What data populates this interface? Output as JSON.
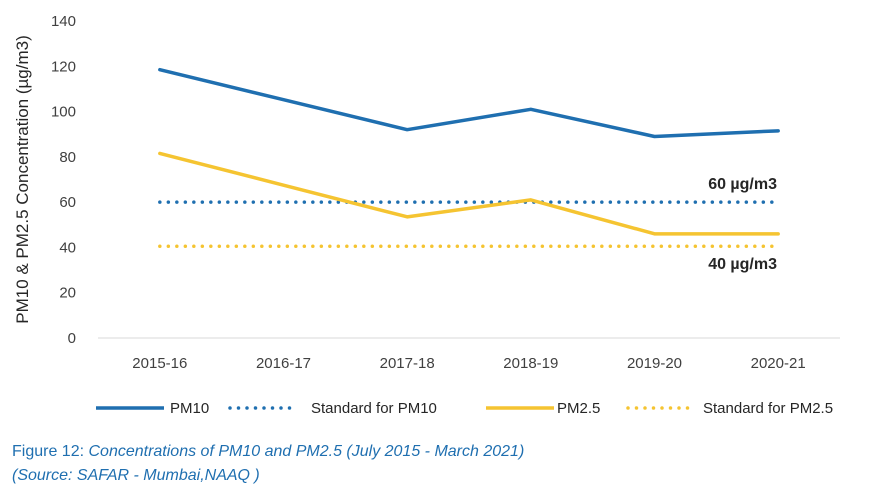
{
  "chart_data": {
    "type": "line",
    "categories": [
      "2015-16",
      "2016-17",
      "2017-18",
      "2018-19",
      "2019-20",
      "2020-21"
    ],
    "series": [
      {
        "name": "PM10",
        "values": [
          118.5,
          null,
          92,
          101,
          89,
          91.5
        ],
        "color": "#1f6fb0",
        "style": "solid"
      },
      {
        "name": "Standard for PM10",
        "values": [
          60,
          60,
          60,
          60,
          60,
          60
        ],
        "color": "#1f6fb0",
        "style": "dotted"
      },
      {
        "name": "PM2.5",
        "values": [
          81.5,
          null,
          53.5,
          61,
          46,
          46
        ],
        "color": "#f5c431",
        "style": "solid"
      },
      {
        "name": "Standard for PM2.5",
        "values": [
          40.5,
          40.5,
          40.5,
          40.5,
          40.5,
          40.5
        ],
        "color": "#f5c431",
        "style": "dotted"
      }
    ],
    "ylabel": "PM10 & PM2.5 Concentration (µg/m3)",
    "xlabel": "",
    "ylim": [
      0,
      140
    ],
    "yticks": [
      "0",
      "20",
      "40",
      "60",
      "80",
      "100",
      "120",
      "140"
    ],
    "annotations": [
      "60 µg/m3",
      "40 µg/m3"
    ],
    "legend_position": "bottom",
    "grid": false
  },
  "caption": {
    "figure": "Figure 12",
    "separator": ": ",
    "title": "Concentrations of PM10 and PM2.5  (July 2015 - March 2021)",
    "source": "(Source: SAFAR - Mumbai,NAAQ )"
  }
}
